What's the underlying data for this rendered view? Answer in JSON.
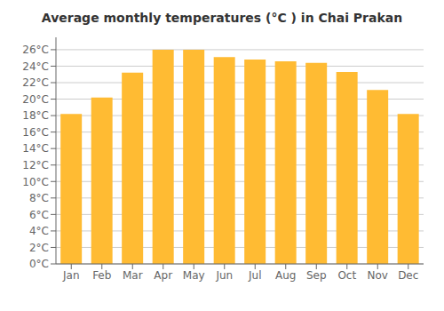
{
  "chart_data": {
    "type": "bar",
    "title": "Average monthly temperatures (°C ) in Chai Prakan",
    "categories": [
      "Jan",
      "Feb",
      "Mar",
      "Apr",
      "May",
      "Jun",
      "Jul",
      "Aug",
      "Sep",
      "Oct",
      "Nov",
      "Dec"
    ],
    "values": [
      18.2,
      20.2,
      23.2,
      26.0,
      26.0,
      25.1,
      24.8,
      24.6,
      24.4,
      23.3,
      21.1,
      18.2
    ],
    "color": "#FFBB33",
    "ylim": [
      0,
      27.5
    ],
    "yticks": [
      {
        "value": 0,
        "label": "0°C"
      },
      {
        "value": 2,
        "label": "2°C"
      },
      {
        "value": 4,
        "label": "4°C"
      },
      {
        "value": 6,
        "label": "6°C"
      },
      {
        "value": 8,
        "label": "8°C"
      },
      {
        "value": 10,
        "label": "10°C"
      },
      {
        "value": 12,
        "label": "12°C"
      },
      {
        "value": 14,
        "label": "14°C"
      },
      {
        "value": 16,
        "label": "16°C"
      },
      {
        "value": 18,
        "label": "18°C"
      },
      {
        "value": 20,
        "label": "20°C"
      },
      {
        "value": 22,
        "label": "22°C"
      },
      {
        "value": 24,
        "label": "24°C"
      },
      {
        "value": 26,
        "label": "26°C"
      }
    ],
    "grid": true
  }
}
